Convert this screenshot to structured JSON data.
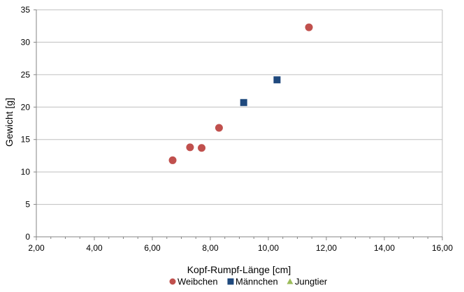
{
  "chart_data": {
    "type": "scatter",
    "xlabel": "Kopf-Rumpf-Länge [cm]",
    "ylabel": "Gewicht  [g]",
    "xlim": [
      2,
      16
    ],
    "ylim": [
      0,
      35
    ],
    "x_ticks": [
      "2,00",
      "4,00",
      "6,00",
      "8,00",
      "10,00",
      "12,00",
      "14,00",
      "16,00"
    ],
    "y_ticks": [
      "0",
      "5",
      "10",
      "15",
      "20",
      "25",
      "30",
      "35"
    ],
    "x_tick_values": [
      2,
      4,
      6,
      8,
      10,
      12,
      14,
      16
    ],
    "y_tick_values": [
      0,
      5,
      10,
      15,
      20,
      25,
      30,
      35
    ],
    "grid": "horizontal",
    "legend_position": "bottom",
    "series": [
      {
        "name": "Weibchen",
        "marker": "circle",
        "color": "#C0504D",
        "points": [
          {
            "x": 6.7,
            "y": 11.8
          },
          {
            "x": 7.3,
            "y": 13.8
          },
          {
            "x": 7.7,
            "y": 13.7
          },
          {
            "x": 8.3,
            "y": 16.8
          },
          {
            "x": 11.4,
            "y": 32.3
          }
        ]
      },
      {
        "name": "Männchen",
        "marker": "square",
        "color": "#1F497D",
        "points": [
          {
            "x": 9.15,
            "y": 20.7
          },
          {
            "x": 10.3,
            "y": 24.2
          }
        ]
      },
      {
        "name": "Jungtier",
        "marker": "triangle",
        "color": "#9BBB59",
        "points": []
      }
    ]
  }
}
